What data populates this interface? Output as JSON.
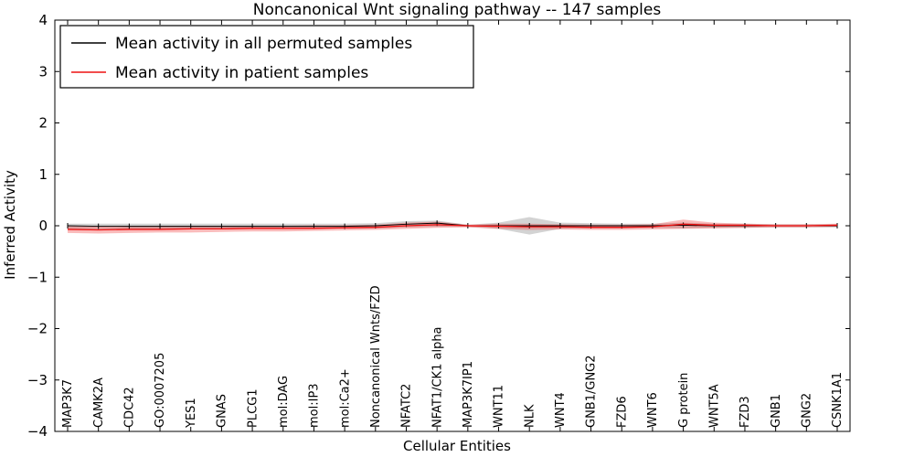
{
  "chart_data": {
    "type": "line",
    "title": "Noncanonical Wnt signaling pathway -- 147 samples",
    "xlabel": "Cellular Entities",
    "ylabel": "Inferred Activity",
    "ylim": [
      -4,
      4
    ],
    "yticks": {
      "values": [
        -4,
        -3,
        -2,
        -1,
        0,
        1,
        2,
        3,
        4
      ],
      "labels": [
        "−4",
        "−3",
        "−2",
        "−1",
        "0",
        "1",
        "2",
        "3",
        "4"
      ]
    },
    "legend_position": "upper left",
    "grid": false,
    "categories": [
      "MAP3K7",
      "CAMK2A",
      "CDC42",
      "GO:0007205",
      "YES1",
      "GNAS",
      "PLCG1",
      "mol:DAG",
      "mol:IP3",
      "mol:Ca2+",
      "Noncanonical Wnts/FZD",
      "NFATC2",
      "NFAT1/CK1 alpha",
      "MAP3K7IP1",
      "WNT11",
      "NLK",
      "WNT4",
      "GNB1/GNG2",
      "FZD6",
      "WNT6",
      "G protein",
      "WNT5A",
      "FZD3",
      "GNB1",
      "GNG2",
      "CSNK1A1"
    ],
    "series": [
      {
        "name": "Mean activity in all permuted samples",
        "color": "#000000",
        "band_color": "rgba(130,130,130,0.35)",
        "values": [
          0.0,
          -0.01,
          -0.01,
          -0.01,
          -0.01,
          -0.01,
          -0.01,
          -0.01,
          -0.01,
          -0.01,
          0.0,
          0.03,
          0.05,
          0.0,
          0.0,
          0.0,
          0.0,
          0.0,
          0.0,
          0.0,
          0.01,
          0.0,
          0.0,
          0.0,
          0.0,
          0.0
        ],
        "band_upper": [
          0.04,
          0.04,
          0.04,
          0.04,
          0.04,
          0.04,
          0.04,
          0.04,
          0.04,
          0.04,
          0.05,
          0.09,
          0.1,
          0.02,
          0.06,
          0.17,
          0.06,
          0.05,
          0.04,
          0.04,
          0.06,
          0.04,
          0.04,
          0.03,
          0.03,
          0.03
        ],
        "band_lower": [
          -0.06,
          -0.06,
          -0.06,
          -0.06,
          -0.06,
          -0.05,
          -0.05,
          -0.05,
          -0.05,
          -0.05,
          -0.05,
          -0.03,
          -0.02,
          -0.02,
          -0.06,
          -0.17,
          -0.06,
          -0.05,
          -0.05,
          -0.04,
          -0.05,
          -0.04,
          -0.04,
          -0.03,
          -0.03,
          -0.03
        ]
      },
      {
        "name": "Mean activity in patient samples",
        "color": "#ee1111",
        "band_color": "rgba(240,30,30,0.30)",
        "values": [
          -0.07,
          -0.08,
          -0.07,
          -0.07,
          -0.06,
          -0.06,
          -0.05,
          -0.05,
          -0.05,
          -0.04,
          -0.03,
          0.0,
          0.02,
          0.0,
          -0.01,
          -0.02,
          -0.02,
          -0.03,
          -0.03,
          -0.02,
          0.03,
          0.01,
          0.01,
          0.0,
          0.0,
          0.01
        ],
        "band_upper": [
          0.0,
          0.0,
          0.0,
          0.0,
          0.0,
          0.0,
          0.0,
          0.0,
          0.01,
          0.01,
          0.02,
          0.06,
          0.08,
          0.02,
          0.04,
          0.04,
          0.03,
          0.02,
          0.02,
          0.03,
          0.12,
          0.06,
          0.04,
          0.03,
          0.03,
          0.04
        ],
        "band_lower": [
          -0.14,
          -0.15,
          -0.14,
          -0.13,
          -0.13,
          -0.12,
          -0.11,
          -0.11,
          -0.1,
          -0.09,
          -0.08,
          -0.06,
          -0.04,
          -0.03,
          -0.06,
          -0.08,
          -0.07,
          -0.08,
          -0.08,
          -0.07,
          -0.06,
          -0.05,
          -0.04,
          -0.03,
          -0.03,
          -0.02
        ]
      }
    ]
  }
}
